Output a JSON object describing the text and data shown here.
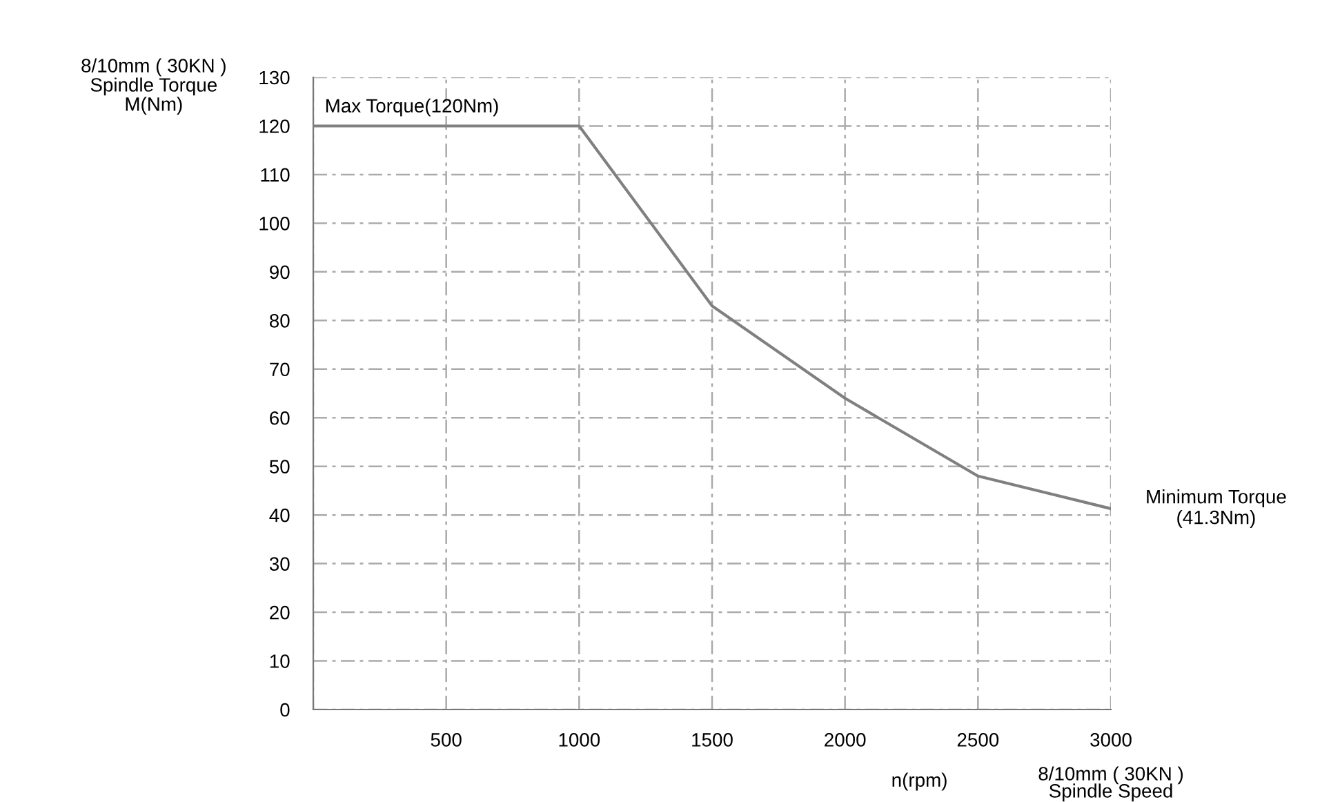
{
  "chart_data": {
    "type": "line",
    "x": [
      0,
      1000,
      1500,
      2000,
      2500,
      3000
    ],
    "series": [
      {
        "color": "#808080",
        "values": [
          120,
          120,
          83,
          64,
          48,
          41.3
        ]
      }
    ],
    "xlim": [
      0,
      3000
    ],
    "ylim": [
      0,
      130
    ],
    "xticks": [
      {
        "value": 0,
        "label": null
      },
      500,
      1000,
      1500,
      2000,
      2500,
      3000
    ],
    "yticks": [
      0,
      10,
      20,
      30,
      40,
      50,
      60,
      70,
      80,
      90,
      100,
      110,
      120,
      130
    ],
    "ylabel": "8/10mm ( 30KN )\nSpindle Torque\nM(Nm)",
    "xlabel": "n(rpm)",
    "annotations": [
      {
        "text": "Max Torque(120Nm)",
        "x": 0,
        "y": 120
      },
      {
        "text": "Minimum Torque\n(41.3Nm)",
        "x": 3000,
        "y": 41.3
      },
      "8/10mm ( 30KN )\nSpindle Speed"
    ],
    "grid": true,
    "marker": "none",
    "line_style": "solid"
  }
}
